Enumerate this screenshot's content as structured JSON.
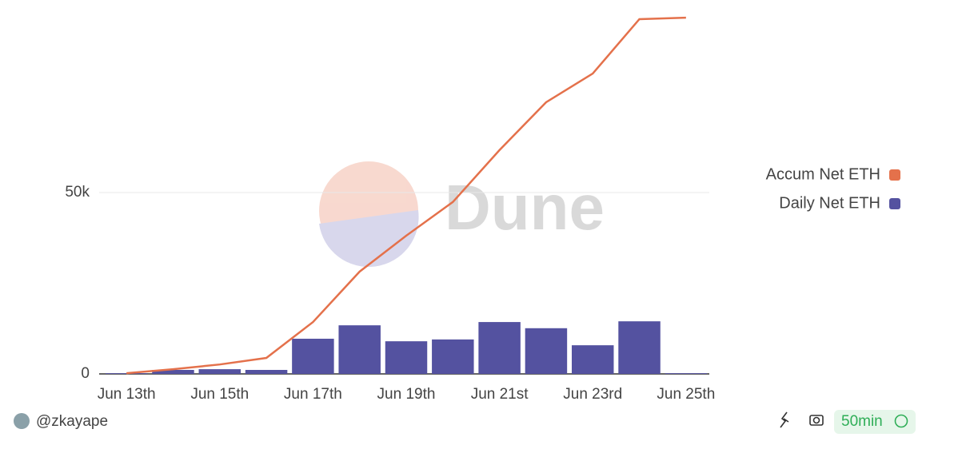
{
  "chart_data": {
    "type": "bar-line",
    "watermark": "Dune",
    "categories": [
      "Jun 13th",
      null,
      "Jun 15th",
      null,
      "Jun 17th",
      null,
      "Jun 19th",
      null,
      "Jun 21st",
      null,
      "Jun 23rd",
      null,
      "Jun 25th"
    ],
    "series": [
      {
        "name": "Accum Net ETH",
        "color": "#e4714b",
        "kind": "line",
        "values": [
          200,
          1300,
          2600,
          4400,
          14300,
          28200,
          38100,
          47400,
          61700,
          74900,
          82800,
          97800,
          98200
        ]
      },
      {
        "name": "Daily Net ETH",
        "color": "#5452a0",
        "kind": "bar",
        "values": [
          200,
          1100,
          1300,
          1100,
          9700,
          13400,
          9000,
          9500,
          14300,
          12600,
          7900,
          14500,
          200
        ]
      }
    ],
    "ylim": [
      0,
      100000
    ],
    "yticks": [
      0,
      {
        "value": 50000,
        "label": "50k"
      }
    ],
    "grid": true,
    "legend": "right"
  },
  "footer": {
    "author": "@zkayape",
    "refresh": "50min"
  }
}
